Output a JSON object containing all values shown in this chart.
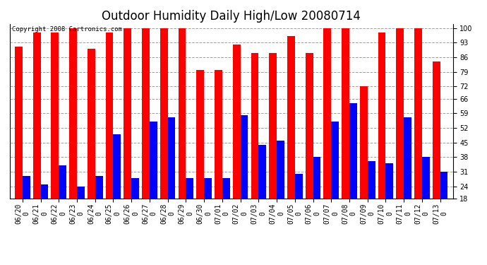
{
  "title": "Outdoor Humidity Daily High/Low 20080714",
  "copyright": "Copyright 2008 Cartronics.com",
  "dates": [
    "06/20",
    "06/21",
    "06/22",
    "06/23",
    "06/24",
    "06/25",
    "06/26",
    "06/27",
    "06/28",
    "06/29",
    "06/30",
    "07/01",
    "07/02",
    "07/03",
    "07/04",
    "07/05",
    "07/06",
    "07/07",
    "07/08",
    "07/09",
    "07/10",
    "07/11",
    "07/12",
    "07/13"
  ],
  "highs": [
    91,
    98,
    98,
    100,
    90,
    98,
    100,
    100,
    100,
    100,
    80,
    80,
    92,
    88,
    88,
    96,
    88,
    100,
    100,
    72,
    98,
    100,
    100,
    84
  ],
  "lows": [
    29,
    25,
    34,
    24,
    29,
    49,
    28,
    55,
    57,
    28,
    28,
    28,
    58,
    44,
    46,
    30,
    38,
    55,
    64,
    36,
    35,
    57,
    38,
    31
  ],
  "bar_width": 0.42,
  "high_color": "#ff0000",
  "low_color": "#0000ff",
  "background_color": "#ffffff",
  "grid_color": "#888888",
  "yticks": [
    18,
    24,
    31,
    38,
    45,
    52,
    59,
    66,
    72,
    79,
    86,
    93,
    100
  ],
  "ylim": [
    18,
    102
  ],
  "title_fontsize": 12,
  "tick_fontsize": 7,
  "copyright_fontsize": 6.5,
  "figwidth": 6.9,
  "figheight": 3.75,
  "dpi": 100
}
